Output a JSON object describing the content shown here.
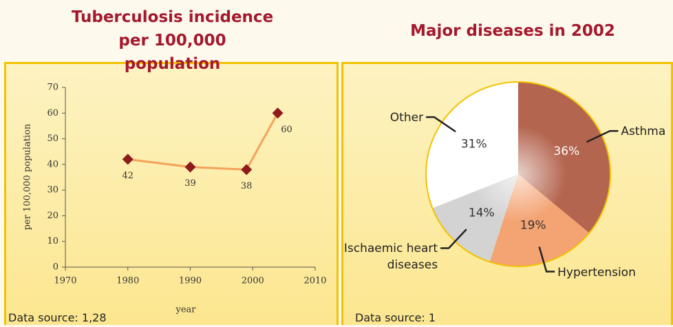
{
  "chart_data": [
    {
      "type": "line",
      "title": "Tuberculosis incidence per 100,000 population",
      "x_label": "year",
      "y_label": "per 100,000 population",
      "source": "Data source: 1,28",
      "x": [
        1980,
        1990,
        1999,
        2004
      ],
      "values": [
        42,
        39,
        38,
        60
      ],
      "color": "#f4a25a",
      "marker_color": "#8e1b1b",
      "xlim": [
        1970,
        2010
      ],
      "xticks": [
        1970,
        1980,
        1990,
        2000,
        2010
      ],
      "ylim": [
        0,
        70
      ],
      "yticks": [
        0,
        10,
        20,
        30,
        40,
        50,
        60,
        70
      ]
    },
    {
      "type": "pie",
      "title": "Major diseases in 2002",
      "source": "Data source: 1",
      "categories": [
        "Asthma",
        "Hypertension",
        "Ischaemic heart diseases",
        "Other"
      ],
      "values": [
        36,
        19,
        14,
        31
      ],
      "value_labels": [
        "36%",
        "19%",
        "14%",
        "31%"
      ],
      "colors": [
        "#b4654f",
        "#f4a373",
        "#d3d3d3",
        "#ffffff"
      ]
    }
  ]
}
